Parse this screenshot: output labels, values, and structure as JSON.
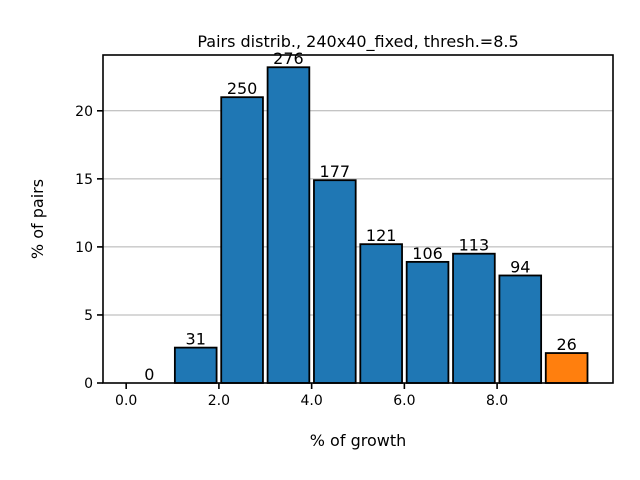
{
  "chart_data": {
    "type": "bar",
    "title": "Pairs distrib., 240x40_fixed, thresh.=8.5",
    "xlabel": "% of growth",
    "ylabel": "% of pairs",
    "x_ticks": [
      "0.0",
      "2.0",
      "4.0",
      "6.0",
      "8.0"
    ],
    "y_ticks": [
      "0",
      "5",
      "10",
      "15",
      "20"
    ],
    "xlim": [
      -0.5,
      10.5
    ],
    "ylim": [
      0,
      24.1
    ],
    "grid": "y",
    "bars": [
      {
        "x": 0.5,
        "value": 0.0,
        "count_label": "0",
        "color": "#1f77b4"
      },
      {
        "x": 1.5,
        "value": 2.6,
        "count_label": "31",
        "color": "#1f77b4"
      },
      {
        "x": 2.5,
        "value": 21.0,
        "count_label": "250",
        "color": "#1f77b4"
      },
      {
        "x": 3.5,
        "value": 23.2,
        "count_label": "276",
        "color": "#1f77b4"
      },
      {
        "x": 4.5,
        "value": 14.9,
        "count_label": "177",
        "color": "#1f77b4"
      },
      {
        "x": 5.5,
        "value": 10.2,
        "count_label": "121",
        "color": "#1f77b4"
      },
      {
        "x": 6.5,
        "value": 8.9,
        "count_label": "106",
        "color": "#1f77b4"
      },
      {
        "x": 7.5,
        "value": 9.5,
        "count_label": "113",
        "color": "#1f77b4"
      },
      {
        "x": 8.5,
        "value": 7.9,
        "count_label": "94",
        "color": "#1f77b4"
      },
      {
        "x": 9.5,
        "value": 2.2,
        "count_label": "26",
        "color": "#ff7f0e"
      }
    ],
    "bar_width": 0.9
  }
}
